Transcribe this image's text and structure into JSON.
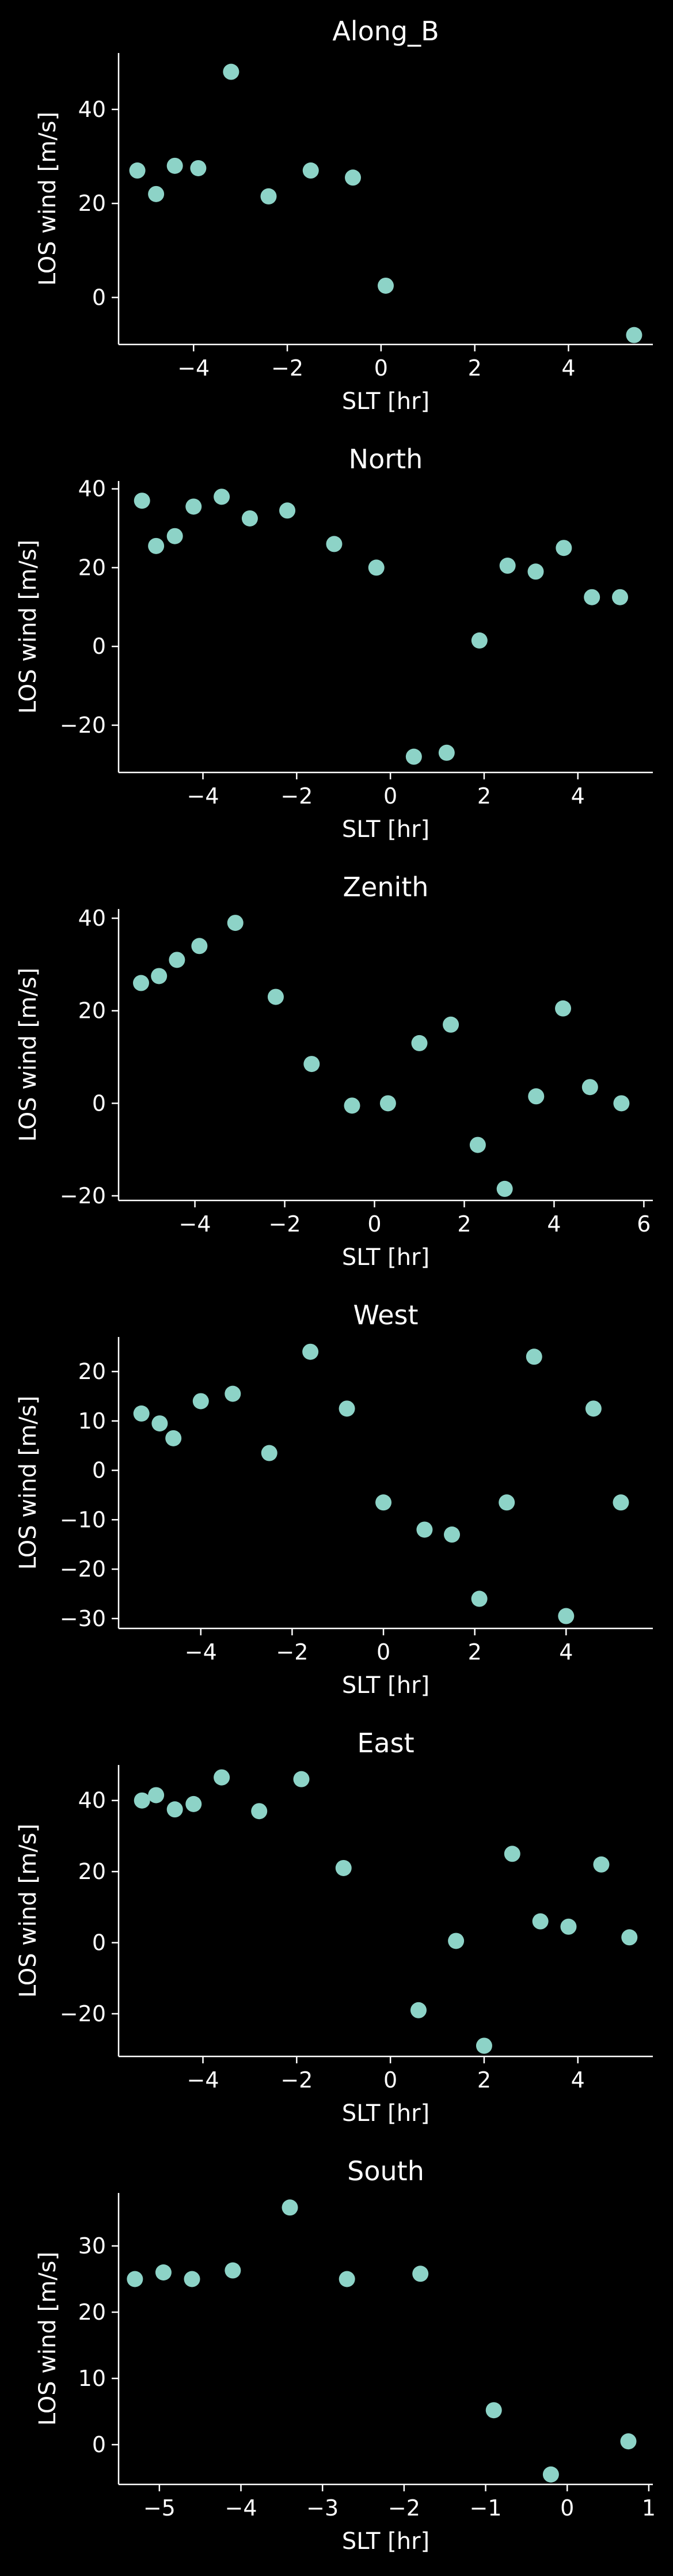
{
  "chart_data": [
    {
      "type": "scatter",
      "title": "Along_B",
      "xlabel": "SLT [hr]",
      "ylabel": "LOS wind [m/s]",
      "xlim": [
        -5.6,
        5.8
      ],
      "ylim": [
        -10,
        52
      ],
      "xticks": [
        -4,
        -2,
        0,
        2,
        4
      ],
      "yticks": [
        0,
        20,
        40
      ],
      "x": [
        -5.2,
        -4.8,
        -4.4,
        -3.9,
        -3.2,
        -2.4,
        -1.5,
        -0.6,
        0.1,
        5.4
      ],
      "y": [
        27,
        22,
        28,
        27.5,
        48,
        21.5,
        27,
        25.5,
        2.5,
        -8
      ]
    },
    {
      "type": "scatter",
      "title": "North",
      "xlabel": "SLT [hr]",
      "ylabel": "LOS wind [m/s]",
      "xlim": [
        -5.8,
        5.6
      ],
      "ylim": [
        -32,
        42
      ],
      "xticks": [
        -4,
        -2,
        0,
        2,
        4
      ],
      "yticks": [
        -20,
        0,
        20,
        40
      ],
      "x": [
        -5.3,
        -5.0,
        -4.6,
        -4.2,
        -3.6,
        -3.0,
        -2.2,
        -1.2,
        -0.3,
        0.5,
        1.2,
        1.9,
        2.5,
        3.1,
        3.7,
        4.3,
        4.9
      ],
      "y": [
        37,
        25.5,
        28,
        35.5,
        38,
        32.5,
        34.5,
        26,
        20,
        -28,
        -27,
        1.5,
        20.5,
        19,
        25,
        12.5,
        12.5
      ]
    },
    {
      "type": "scatter",
      "title": "Zenith",
      "xlabel": "SLT [hr]",
      "ylabel": "LOS wind [m/s]",
      "xlim": [
        -5.7,
        6.2
      ],
      "ylim": [
        -21,
        42
      ],
      "xticks": [
        -4,
        -2,
        0,
        2,
        4,
        6
      ],
      "yticks": [
        -20,
        0,
        20,
        40
      ],
      "x": [
        -5.2,
        -4.8,
        -4.4,
        -3.9,
        -3.1,
        -2.2,
        -1.4,
        -0.5,
        0.3,
        1.0,
        1.7,
        2.3,
        2.9,
        3.6,
        4.2,
        4.8,
        5.5
      ],
      "y": [
        26,
        27.5,
        31,
        34,
        39,
        23,
        8.5,
        -0.5,
        0,
        13,
        17,
        -9,
        -18.5,
        1.5,
        20.5,
        3.5,
        0
      ]
    },
    {
      "type": "scatter",
      "title": "West",
      "xlabel": "SLT [hr]",
      "ylabel": "LOS wind [m/s]",
      "xlim": [
        -5.8,
        5.9
      ],
      "ylim": [
        -32,
        27
      ],
      "xticks": [
        -4,
        -2,
        0,
        2,
        4
      ],
      "yticks": [
        -30,
        -20,
        -10,
        0,
        10,
        20
      ],
      "x": [
        -5.3,
        -4.9,
        -4.6,
        -4.0,
        -3.3,
        -2.5,
        -1.6,
        -0.8,
        0.0,
        0.9,
        1.5,
        2.1,
        2.7,
        3.3,
        4.0,
        4.6,
        5.2
      ],
      "y": [
        11.5,
        9.5,
        6.5,
        14,
        15.5,
        3.5,
        24,
        12.5,
        -6.5,
        -12,
        -13,
        -26,
        -6.5,
        23,
        -29.5,
        12.5,
        -6.5
      ]
    },
    {
      "type": "scatter",
      "title": "East",
      "xlabel": "SLT [hr]",
      "ylabel": "LOS wind [m/s]",
      "xlim": [
        -5.8,
        5.6
      ],
      "ylim": [
        -32,
        50
      ],
      "xticks": [
        -4,
        -2,
        0,
        2,
        4
      ],
      "yticks": [
        -20,
        0,
        20,
        40
      ],
      "x": [
        -5.3,
        -5.0,
        -4.6,
        -4.2,
        -3.6,
        -2.8,
        -1.9,
        -1.0,
        0.6,
        1.4,
        2.0,
        2.6,
        3.2,
        3.8,
        4.5,
        5.1
      ],
      "y": [
        40,
        41.5,
        37.5,
        39,
        46.5,
        37,
        46,
        21,
        -19,
        0.5,
        -29,
        25,
        6,
        4.5,
        22,
        1.5
      ]
    },
    {
      "type": "scatter",
      "title": "South",
      "xlabel": "SLT [hr]",
      "ylabel": "LOS wind [m/s]",
      "xlim": [
        -5.5,
        1.05
      ],
      "ylim": [
        -6,
        38
      ],
      "xticks": [
        -5,
        -4,
        -3,
        -2,
        -1,
        0,
        1
      ],
      "yticks": [
        0,
        10,
        20,
        30
      ],
      "x": [
        -5.3,
        -4.95,
        -4.6,
        -4.1,
        -3.4,
        -2.7,
        -1.8,
        -0.9,
        -0.2,
        0.75
      ],
      "y": [
        25,
        26,
        25,
        26.3,
        35.8,
        25,
        25.8,
        5.2,
        -4.5,
        0.5
      ]
    }
  ],
  "colors": {
    "background": "#000000",
    "marker": "#8dd3c7",
    "axis": "#ffffff",
    "text": "#ffffff"
  }
}
